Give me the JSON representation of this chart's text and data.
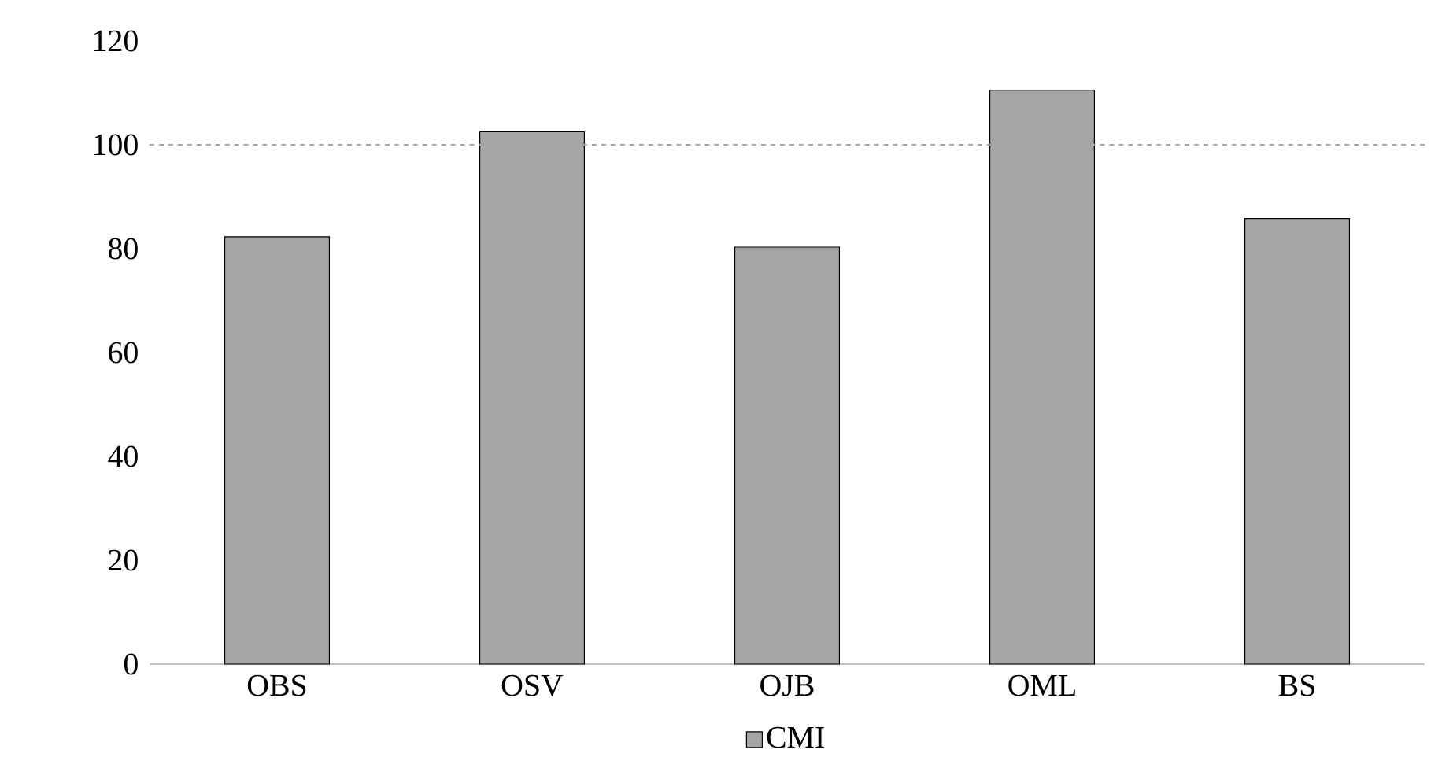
{
  "chart_data": {
    "type": "bar",
    "categories": [
      "OBS",
      "OSV",
      "OJB",
      "OML",
      "BS"
    ],
    "series": [
      {
        "name": "CMI",
        "color": "#a6a6a6",
        "values": [
          82.3,
          102.5,
          80.3,
          110.5,
          85.8
        ]
      }
    ],
    "ylim": [
      0,
      120
    ],
    "yticks": [
      0,
      20,
      40,
      60,
      80,
      100,
      120
    ],
    "ref_lines": [
      {
        "axis": "y",
        "value": 100,
        "color": "#a6a6a6",
        "line_style": "dashed"
      }
    ],
    "grid": false,
    "legend": "bottom"
  }
}
